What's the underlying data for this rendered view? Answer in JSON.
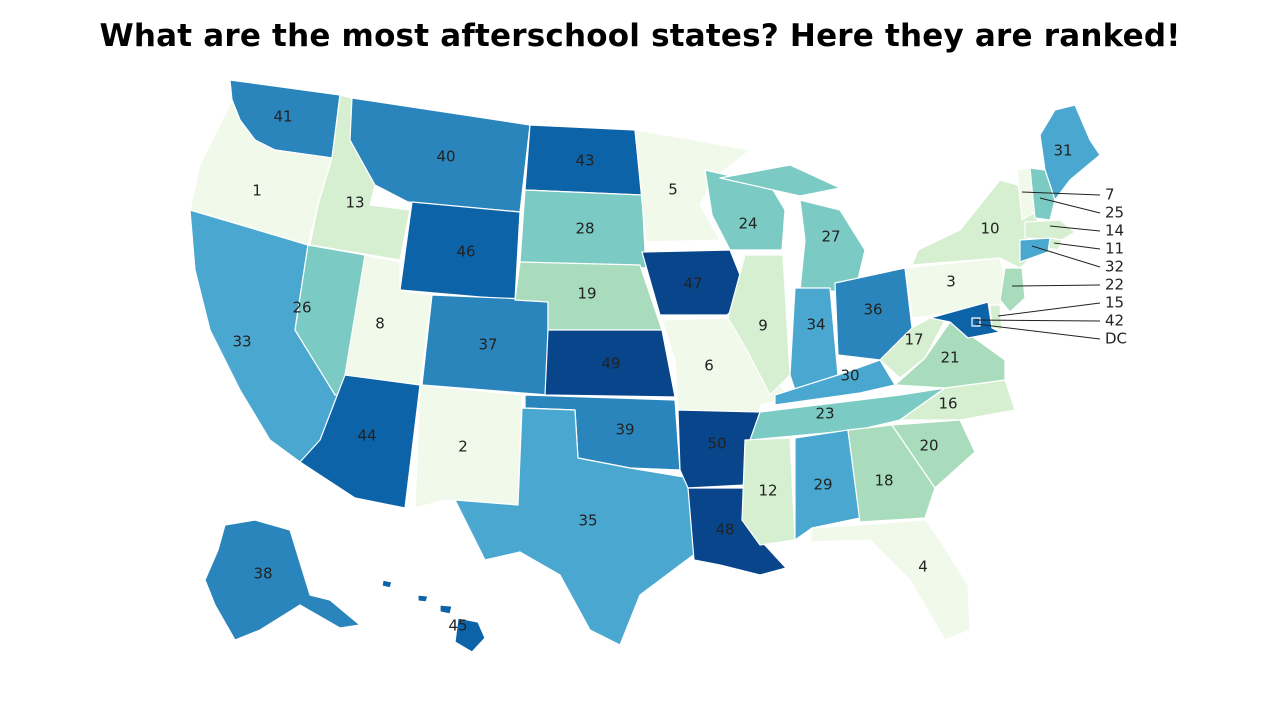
{
  "title": "What are the most afterschool states? Here they are ranked!",
  "palette": {
    "r1": "#f1f9ea",
    "r2": "#d6efd0",
    "r3": "#a8dcbd",
    "r4": "#7bcbc4",
    "r5": "#4aa8d0",
    "r6": "#2a85bd",
    "r7": "#0d63a8",
    "r8": "#08458a"
  },
  "states": [
    {
      "name": "WA",
      "rank": "41"
    },
    {
      "name": "OR",
      "rank": "1"
    },
    {
      "name": "CA",
      "rank": "33"
    },
    {
      "name": "ID",
      "rank": "13"
    },
    {
      "name": "NV",
      "rank": "26"
    },
    {
      "name": "MT",
      "rank": "40"
    },
    {
      "name": "WY",
      "rank": "46"
    },
    {
      "name": "UT",
      "rank": "8"
    },
    {
      "name": "AZ",
      "rank": "44"
    },
    {
      "name": "CO",
      "rank": "37"
    },
    {
      "name": "NM",
      "rank": "2"
    },
    {
      "name": "ND",
      "rank": "43"
    },
    {
      "name": "SD",
      "rank": "28"
    },
    {
      "name": "NE",
      "rank": "19"
    },
    {
      "name": "KS",
      "rank": "49"
    },
    {
      "name": "OK",
      "rank": "39"
    },
    {
      "name": "TX",
      "rank": "35"
    },
    {
      "name": "MN",
      "rank": "5"
    },
    {
      "name": "IA",
      "rank": "47"
    },
    {
      "name": "MO",
      "rank": "6"
    },
    {
      "name": "AR",
      "rank": "50"
    },
    {
      "name": "LA",
      "rank": "48"
    },
    {
      "name": "WI",
      "rank": "24"
    },
    {
      "name": "IL",
      "rank": "9"
    },
    {
      "name": "MI",
      "rank": "27"
    },
    {
      "name": "IN",
      "rank": "34"
    },
    {
      "name": "OH",
      "rank": "36"
    },
    {
      "name": "KY",
      "rank": "30"
    },
    {
      "name": "TN",
      "rank": "23"
    },
    {
      "name": "MS",
      "rank": "12"
    },
    {
      "name": "AL",
      "rank": "29"
    },
    {
      "name": "GA",
      "rank": "18"
    },
    {
      "name": "FL",
      "rank": "4"
    },
    {
      "name": "SC",
      "rank": "20"
    },
    {
      "name": "NC",
      "rank": "16"
    },
    {
      "name": "VA",
      "rank": "21"
    },
    {
      "name": "WV",
      "rank": "17"
    },
    {
      "name": "PA",
      "rank": "3"
    },
    {
      "name": "NY",
      "rank": "10"
    },
    {
      "name": "ME",
      "rank": "31"
    },
    {
      "name": "AK",
      "rank": "38"
    },
    {
      "name": "HI",
      "rank": "45"
    }
  ],
  "callouts": [
    {
      "name": "VT",
      "rank": "7"
    },
    {
      "name": "NH",
      "rank": "25"
    },
    {
      "name": "MA",
      "rank": "14"
    },
    {
      "name": "RI",
      "rank": "11"
    },
    {
      "name": "CT",
      "rank": "32"
    },
    {
      "name": "NJ",
      "rank": "22"
    },
    {
      "name": "DE",
      "rank": "15"
    },
    {
      "name": "MD",
      "rank": "42"
    },
    {
      "name": "DC",
      "rank": "DC"
    }
  ]
}
